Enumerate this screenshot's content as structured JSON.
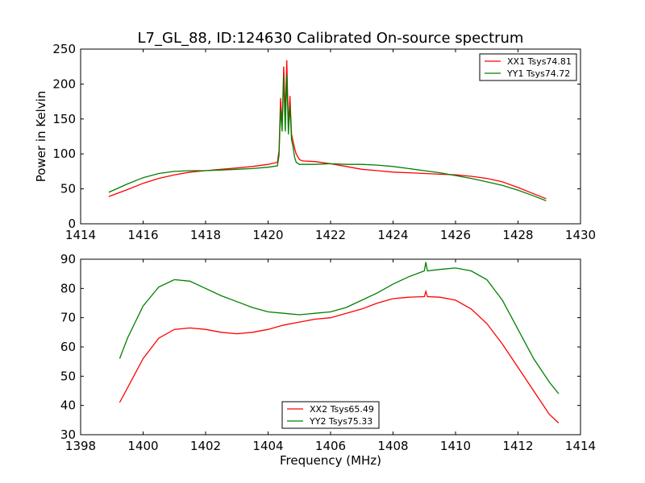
{
  "figure": {
    "title": "L7_GL_88, ID:124630 Calibrated On-source spectrum"
  },
  "chart_data": [
    {
      "type": "line",
      "title": "L7_GL_88, ID:124630 Calibrated On-source spectrum",
      "xlabel": "",
      "ylabel": "Power in Kelvin",
      "xlim": [
        1414,
        1430
      ],
      "ylim": [
        0,
        250
      ],
      "xticks": [
        1414,
        1416,
        1418,
        1420,
        1422,
        1424,
        1426,
        1428,
        1430
      ],
      "yticks": [
        0,
        50,
        100,
        150,
        200,
        250
      ],
      "grid": false,
      "legend": "top-right",
      "series": [
        {
          "name": "XX1 Tsys74.81",
          "color": "#ff0000",
          "x": [
            1414.9,
            1415.5,
            1416.0,
            1416.5,
            1417.0,
            1417.5,
            1418.0,
            1418.5,
            1419.0,
            1419.5,
            1420.0,
            1420.3,
            1420.35,
            1420.4,
            1420.45,
            1420.5,
            1420.55,
            1420.6,
            1420.65,
            1420.7,
            1420.75,
            1420.8,
            1420.85,
            1420.9,
            1421.0,
            1421.1,
            1421.5,
            1422.0,
            1422.5,
            1423.0,
            1423.5,
            1424.0,
            1424.5,
            1425.0,
            1425.5,
            1426.0,
            1426.5,
            1427.0,
            1427.5,
            1428.0,
            1428.5,
            1428.9
          ],
          "y": [
            39,
            49,
            58,
            65,
            70,
            74,
            76,
            78,
            80,
            82,
            85,
            88,
            105,
            180,
            140,
            225,
            155,
            234,
            138,
            183,
            128,
            118,
            108,
            100,
            92,
            90,
            89,
            86,
            82,
            78,
            76,
            74,
            73,
            72,
            71,
            70,
            68,
            65,
            60,
            52,
            43,
            36
          ]
        },
        {
          "name": "YY1 Tsys74.72",
          "color": "#008000",
          "x": [
            1414.9,
            1415.5,
            1416.0,
            1416.5,
            1417.0,
            1417.5,
            1418.0,
            1418.5,
            1419.0,
            1419.5,
            1420.0,
            1420.3,
            1420.35,
            1420.4,
            1420.45,
            1420.5,
            1420.55,
            1420.6,
            1420.65,
            1420.7,
            1420.75,
            1420.8,
            1420.85,
            1420.9,
            1421.0,
            1421.1,
            1421.5,
            1422.0,
            1422.5,
            1423.0,
            1423.5,
            1424.0,
            1424.5,
            1425.0,
            1425.5,
            1426.0,
            1426.5,
            1427.0,
            1427.5,
            1428.0,
            1428.5,
            1428.9
          ],
          "y": [
            45,
            57,
            66,
            72,
            75,
            76,
            76,
            77,
            78,
            79,
            81,
            83,
            98,
            165,
            132,
            212,
            132,
            213,
            128,
            170,
            120,
            110,
            95,
            88,
            85,
            85,
            85,
            86,
            85,
            85,
            84,
            82,
            79,
            76,
            73,
            69,
            65,
            60,
            55,
            48,
            40,
            33
          ]
        }
      ]
    },
    {
      "type": "line",
      "title": "",
      "xlabel": "Frequency (MHz)",
      "ylabel": "",
      "xlim": [
        1398,
        1414
      ],
      "ylim": [
        30,
        90
      ],
      "xticks": [
        1398,
        1400,
        1402,
        1404,
        1406,
        1408,
        1410,
        1412,
        1414
      ],
      "yticks": [
        30,
        40,
        50,
        60,
        70,
        80,
        90
      ],
      "grid": false,
      "legend": "bottom-center",
      "series": [
        {
          "name": "XX2 Tsys65.49",
          "color": "#ff0000",
          "x": [
            1399.25,
            1399.5,
            1400.0,
            1400.5,
            1401.0,
            1401.5,
            1402.0,
            1402.5,
            1403.0,
            1403.5,
            1404.0,
            1404.5,
            1405.0,
            1405.5,
            1406.0,
            1406.5,
            1407.0,
            1407.5,
            1408.0,
            1408.5,
            1409.0,
            1409.05,
            1409.1,
            1409.5,
            1410.0,
            1410.5,
            1411.0,
            1411.5,
            1412.0,
            1412.5,
            1413.0,
            1413.3
          ],
          "y": [
            41,
            46,
            56,
            63,
            66,
            66.5,
            66,
            65,
            64.5,
            65,
            66,
            67.5,
            68.5,
            69.5,
            70,
            71.5,
            73,
            75,
            76.5,
            77,
            77.2,
            79,
            77.2,
            77,
            76,
            73,
            68,
            61,
            53,
            45,
            37,
            34
          ]
        },
        {
          "name": "YY2 Tsys75.33",
          "color": "#008000",
          "x": [
            1399.25,
            1399.5,
            1400.0,
            1400.5,
            1401.0,
            1401.5,
            1402.0,
            1402.5,
            1403.0,
            1403.5,
            1404.0,
            1404.5,
            1405.0,
            1405.5,
            1406.0,
            1406.5,
            1407.0,
            1407.5,
            1408.0,
            1408.5,
            1409.0,
            1409.05,
            1409.1,
            1409.5,
            1410.0,
            1410.5,
            1411.0,
            1411.5,
            1412.0,
            1412.5,
            1413.0,
            1413.3
          ],
          "y": [
            56,
            63,
            74,
            80.5,
            83,
            82.5,
            80,
            77.5,
            75.5,
            73.5,
            72,
            71.5,
            71,
            71.5,
            72,
            73.5,
            76,
            78.5,
            81.5,
            84,
            86,
            89,
            86,
            86.5,
            87,
            86,
            83,
            76,
            66,
            56,
            48,
            44
          ]
        }
      ]
    }
  ]
}
